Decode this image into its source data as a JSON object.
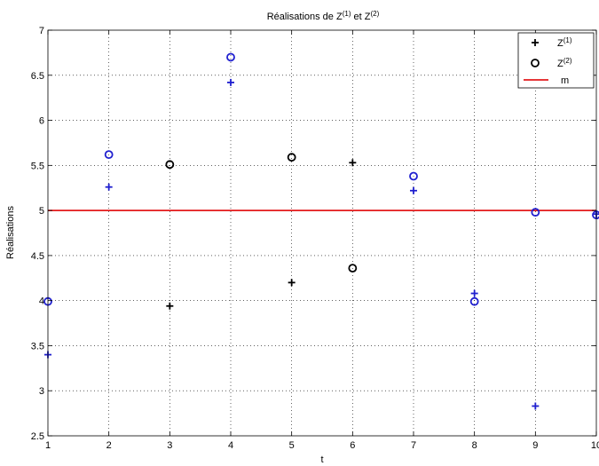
{
  "chart_data": {
    "type": "scatter",
    "title": {
      "base": "Réalisations de Z",
      "sup1": "(1)",
      "mid": " et Z",
      "sup2": "(2)"
    },
    "xlabel": "t",
    "ylabel": "Réalisations",
    "xlim": [
      1,
      10
    ],
    "ylim": [
      2.5,
      7
    ],
    "xticks": [
      1,
      2,
      3,
      4,
      5,
      6,
      7,
      8,
      9,
      10
    ],
    "yticks": [
      2.5,
      3,
      3.5,
      4,
      4.5,
      5,
      5.5,
      6,
      6.5,
      7
    ],
    "grid": true,
    "legend_position": "top-right",
    "colors": {
      "blue": "#1f1fcf",
      "black": "#000000",
      "red": "#e31a1c"
    },
    "series": [
      {
        "marker": "plus",
        "legend": {
          "base": "Z",
          "sup": "(1)"
        },
        "points": [
          {
            "x": 1,
            "y": 3.4,
            "color": "blue"
          },
          {
            "x": 2,
            "y": 5.26,
            "color": "blue"
          },
          {
            "x": 3,
            "y": 3.94,
            "color": "black"
          },
          {
            "x": 4,
            "y": 6.42,
            "color": "blue"
          },
          {
            "x": 5,
            "y": 4.2,
            "color": "black"
          },
          {
            "x": 6,
            "y": 5.53,
            "color": "black"
          },
          {
            "x": 7,
            "y": 5.22,
            "color": "blue"
          },
          {
            "x": 8,
            "y": 4.08,
            "color": "blue"
          },
          {
            "x": 9,
            "y": 2.83,
            "color": "blue"
          },
          {
            "x": 10,
            "y": 4.96,
            "color": "blue"
          }
        ]
      },
      {
        "marker": "circle",
        "legend": {
          "base": "Z",
          "sup": "(2)"
        },
        "points": [
          {
            "x": 1,
            "y": 3.99,
            "color": "blue"
          },
          {
            "x": 2,
            "y": 5.62,
            "color": "blue"
          },
          {
            "x": 3,
            "y": 5.51,
            "color": "black"
          },
          {
            "x": 4,
            "y": 6.7,
            "color": "blue"
          },
          {
            "x": 5,
            "y": 5.59,
            "color": "black"
          },
          {
            "x": 6,
            "y": 4.36,
            "color": "black"
          },
          {
            "x": 7,
            "y": 5.38,
            "color": "blue"
          },
          {
            "x": 8,
            "y": 3.99,
            "color": "blue"
          },
          {
            "x": 9,
            "y": 4.98,
            "color": "blue"
          },
          {
            "x": 10,
            "y": 4.95,
            "color": "blue"
          }
        ]
      }
    ],
    "reference_line": {
      "y": 5,
      "legend": "m",
      "color": "red"
    }
  }
}
